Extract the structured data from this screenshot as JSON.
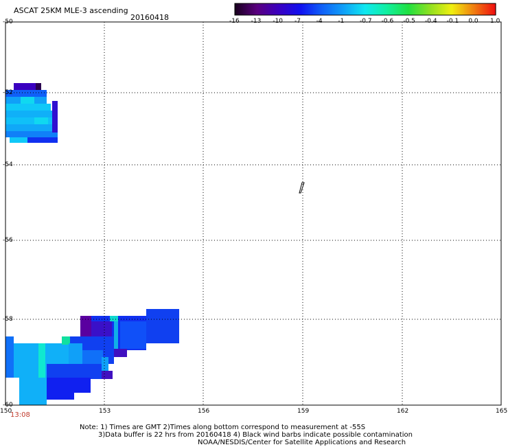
{
  "header": {
    "title": "ASCAT 25KM MLE-3 ascending",
    "date": "20160418"
  },
  "colorbar": {
    "labels": [
      "-16",
      "-13",
      "-10",
      "-7",
      "-4",
      "-1",
      "-0.7",
      "-0.6",
      "-0.5",
      "-0.4",
      "-0.1",
      "0.0",
      "1.0"
    ],
    "colors": [
      "#1a0020",
      "#5a0080",
      "#3a00c0",
      "#1010f0",
      "#1060f8",
      "#10a0f8",
      "#10e8f0",
      "#10f0a0",
      "#20e040",
      "#90e020",
      "#f0f010",
      "#f08010",
      "#f01010"
    ]
  },
  "map": {
    "lat_labels": [
      "-50",
      "-52",
      "-54",
      "-56",
      "-58",
      "-60"
    ],
    "lon_labels": [
      "150",
      "153",
      "156",
      "159",
      "162",
      "165"
    ],
    "time_label": "13:08"
  },
  "notes": {
    "line1": "Note: 1) Times are GMT 2)Times along bottom correspond to measurement at -55S",
    "line2": "3)Data buffer is 22 hrs from 20160418 4) Black wind barbs indicate possible contamination",
    "line3": "NOAA/NESDIS/Center for Satellite Applications and Research"
  }
}
